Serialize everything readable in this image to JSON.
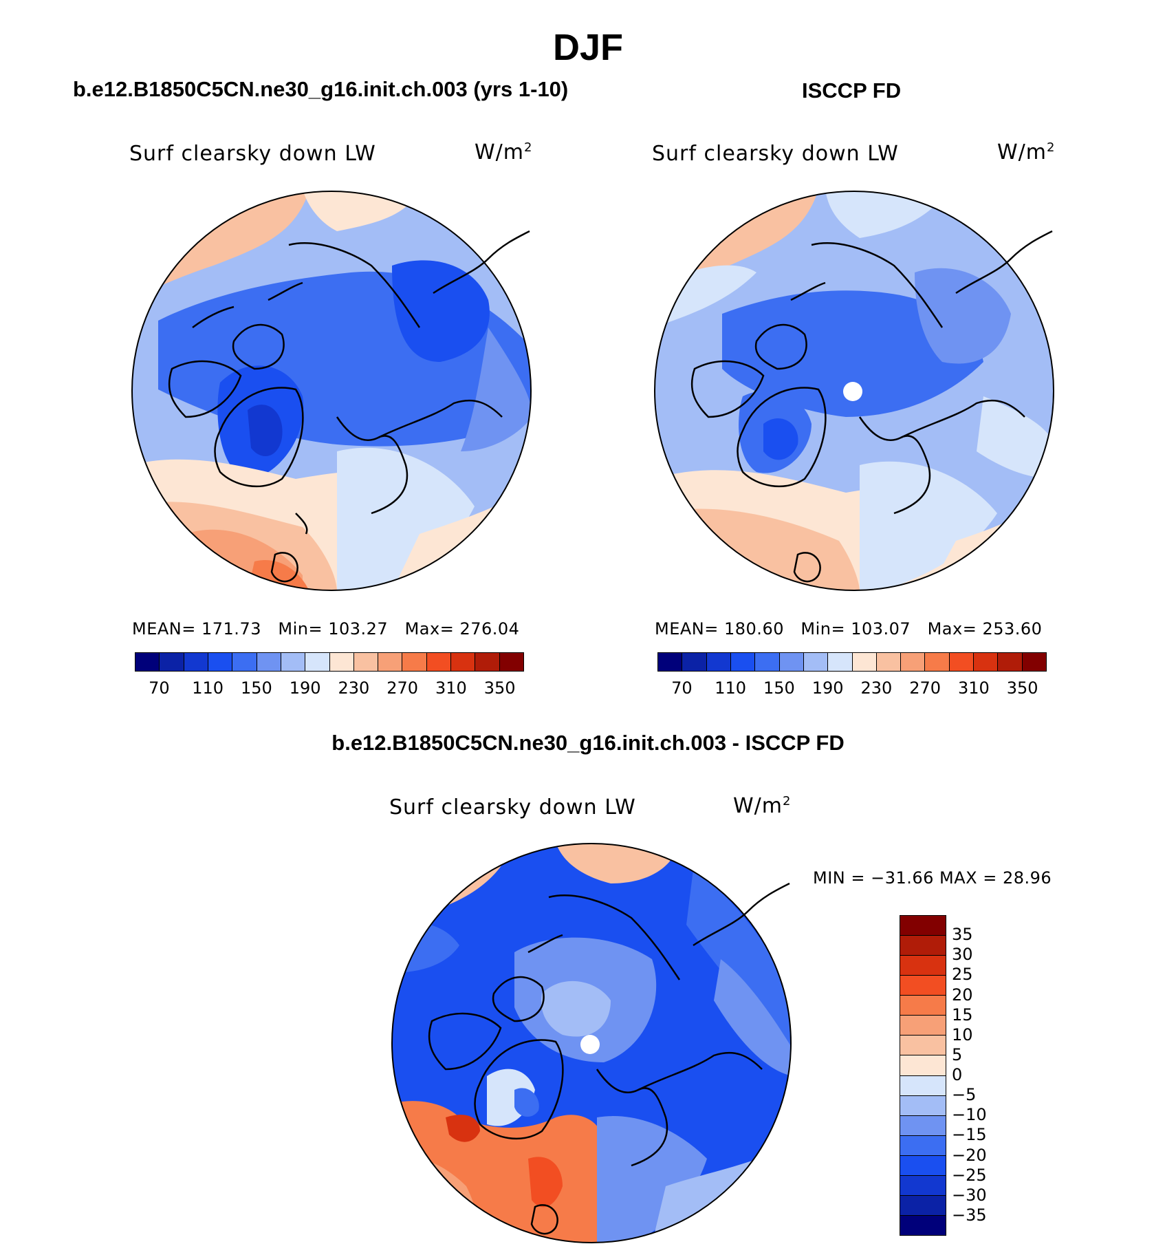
{
  "title": "DJF",
  "panels": [
    {
      "case_title": "b.e12.B1850C5CN.ne30_g16.init.ch.003 (yrs 1-10)",
      "variable": "Surf clearsky down LW",
      "units": "W/m",
      "units_sup": "2",
      "stats": {
        "mean_label": "MEAN=",
        "mean": "171.73",
        "min_label": "Min=",
        "min": "103.27",
        "max_label": "Max=",
        "max": "276.04"
      }
    },
    {
      "case_title": "ISCCP FD",
      "variable": "Surf clearsky down LW",
      "units": "W/m",
      "units_sup": "2",
      "stats": {
        "mean_label": "MEAN=",
        "mean": "180.60",
        "min_label": "Min=",
        "min": "103.07",
        "max_label": "Max=",
        "max": "253.60"
      }
    },
    {
      "case_title": "b.e12.B1850C5CN.ne30_g16.init.ch.003 - ISCCP FD",
      "variable": "Surf clearsky down LW",
      "units": "W/m",
      "units_sup": "2",
      "minmax_text": "MIN = −31.66 MAX =   28.96"
    }
  ],
  "colorbar_abs": {
    "labels": [
      "70",
      "110",
      "150",
      "190",
      "230",
      "270",
      "310",
      "350"
    ],
    "colors": [
      "#00007a",
      "#0b22a6",
      "#1238d0",
      "#1a4ff0",
      "#3c6ef2",
      "#6f93f2",
      "#a3bdf6",
      "#d6e5fb",
      "#fde6d4",
      "#f9c1a1",
      "#f7a077",
      "#f67b49",
      "#f24e22",
      "#d83210",
      "#b01c08",
      "#820000"
    ]
  },
  "colorbar_diff": {
    "labels": [
      "35",
      "30",
      "25",
      "20",
      "15",
      "10",
      "5",
      "0",
      "−5",
      "−10",
      "−15",
      "−20",
      "−25",
      "−30",
      "−35"
    ],
    "colors": [
      "#820000",
      "#b01c08",
      "#d83210",
      "#f24e22",
      "#f67b49",
      "#f7a077",
      "#f9c1a1",
      "#fde6d4",
      "#d6e5fb",
      "#a3bdf6",
      "#6f93f2",
      "#3c6ef2",
      "#1a4ff0",
      "#1238d0",
      "#0b22a6",
      "#00007a"
    ]
  }
}
